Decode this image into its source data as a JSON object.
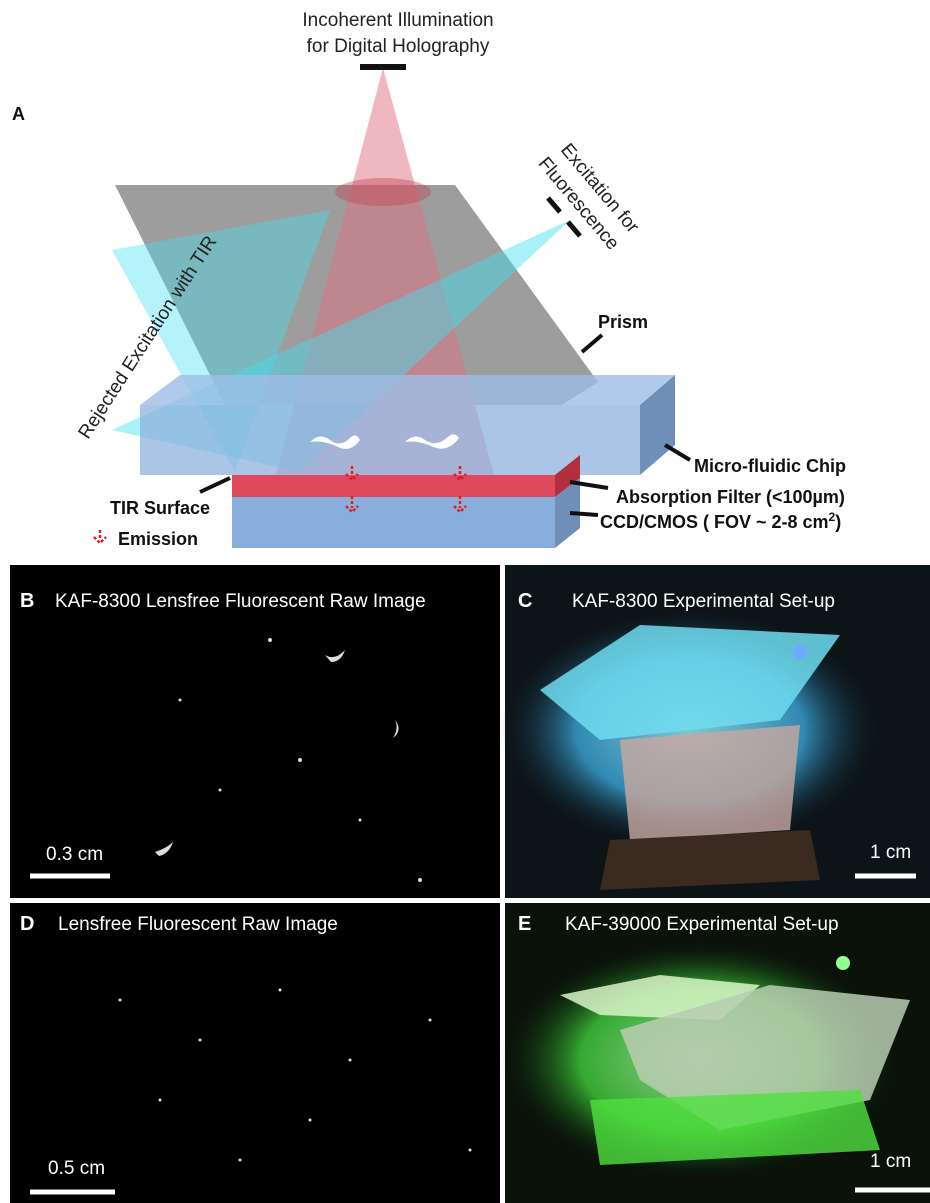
{
  "panel_a": {
    "label": "A",
    "illumination": [
      "Incoherent Illumination",
      "for Digital Holography"
    ],
    "excitation": [
      "Excitation for",
      "Fluorescence"
    ],
    "rejected": "Rejected Excitation with TIR",
    "prism": "Prism",
    "chip": "Micro-fluidic Chip",
    "tir_surface": "TIR Surface",
    "emission": "Emission",
    "filter": "Absorption Filter (<100µm)",
    "sensor": {
      "text": "CCD/CMOS ( FOV ~ 2-8 cm",
      "superscript": "2",
      "suffix": ")"
    }
  },
  "panels": [
    {
      "label": "B",
      "title": "KAF-8300 Lensfree Fluorescent Raw Image",
      "scale": "0.3 cm"
    },
    {
      "label": "C",
      "title": "KAF-8300 Experimental Set-up",
      "scale": "1 cm"
    },
    {
      "label": "D",
      "title": "Lensfree Fluorescent Raw Image",
      "scale": "0.5 cm"
    },
    {
      "label": "E",
      "title": "KAF-39000 Experimental Set-up",
      "scale": "1 cm"
    }
  ]
}
